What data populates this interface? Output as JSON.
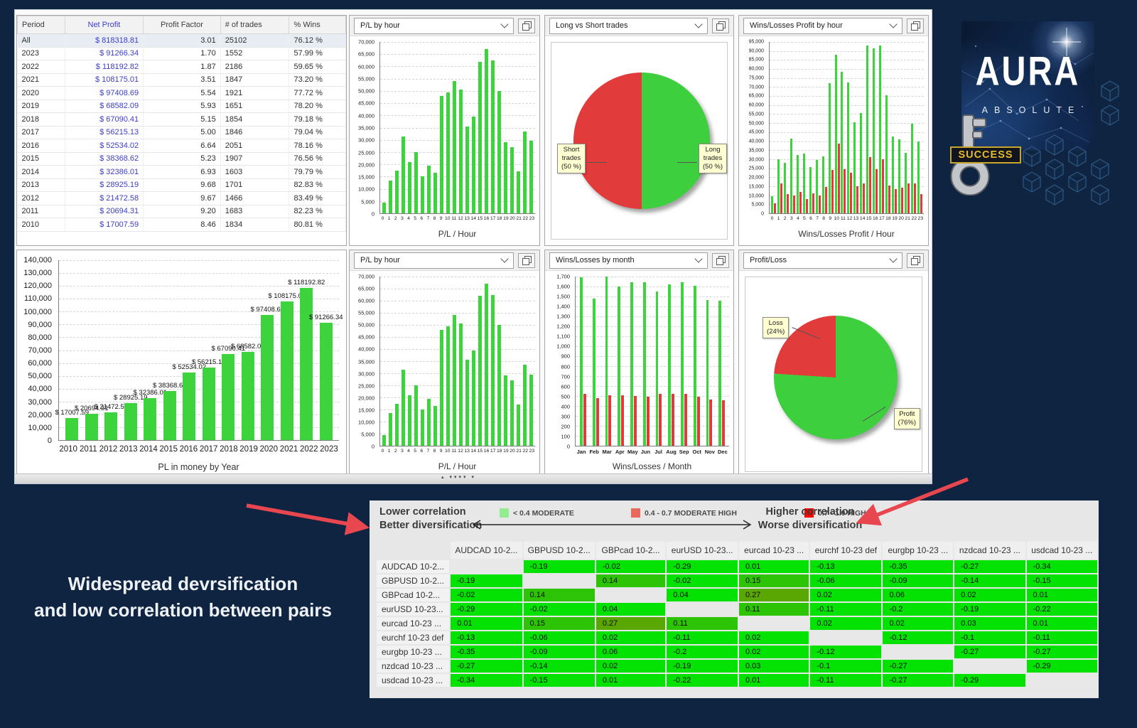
{
  "caption": {
    "line1": "Widespread devrsification",
    "line2": "and low correlation between pairs"
  },
  "icons": {
    "splitter": "▴ ▾▾▾▾ ▾"
  },
  "logo": {
    "title": "AURA",
    "subtitle": "ABSOLUTE",
    "badge": "SUCCESS"
  },
  "summary_table": {
    "columns": [
      "Period",
      "Net Profit",
      "Profit Factor",
      "# of trades",
      "% Wins"
    ],
    "rows": [
      [
        "All",
        "$ 818318.81",
        "3.01",
        "25102",
        "76.12 %"
      ],
      [
        "2023",
        "$ 91266.34",
        "1.70",
        "1552",
        "57.99 %"
      ],
      [
        "2022",
        "$ 118192.82",
        "1.87",
        "2186",
        "59.65 %"
      ],
      [
        "2021",
        "$ 108175.01",
        "3.51",
        "1847",
        "73.20 %"
      ],
      [
        "2020",
        "$ 97408.69",
        "5.54",
        "1921",
        "77.72 %"
      ],
      [
        "2019",
        "$ 68582.09",
        "5.93",
        "1651",
        "78.20 %"
      ],
      [
        "2018",
        "$ 67090.41",
        "5.15",
        "1854",
        "79.18 %"
      ],
      [
        "2017",
        "$ 56215.13",
        "5.00",
        "1846",
        "79.04 %"
      ],
      [
        "2016",
        "$ 52534.02",
        "6.64",
        "2051",
        "78.16 %"
      ],
      [
        "2015",
        "$ 38368.62",
        "5.23",
        "1907",
        "76.56 %"
      ],
      [
        "2014",
        "$ 32386.01",
        "6.93",
        "1603",
        "79.79 %"
      ],
      [
        "2013",
        "$ 28925.19",
        "9.68",
        "1701",
        "82.83 %"
      ],
      [
        "2012",
        "$ 21472.58",
        "9.67",
        "1466",
        "83.49 %"
      ],
      [
        "2011",
        "$ 20694.31",
        "9.20",
        "1683",
        "82.23 %"
      ],
      [
        "2010",
        "$ 17007.59",
        "8.46",
        "1834",
        "80.81 %"
      ]
    ]
  },
  "chart_data": [
    {
      "id": "pl_by_hour_top",
      "type": "bar",
      "dropdown": "P/L by hour",
      "xlabel": "P/L / Hour",
      "ylim": [
        0,
        70000
      ],
      "ystep": 5000,
      "categories": [
        "0",
        "1",
        "2",
        "3",
        "4",
        "5",
        "6",
        "7",
        "8",
        "9",
        "10",
        "11",
        "12",
        "13",
        "14",
        "15",
        "16",
        "17",
        "18",
        "19",
        "20",
        "21",
        "22",
        "23"
      ],
      "series": [
        {
          "name": "P/L",
          "color": "#3dd33d",
          "values": [
            4500,
            13500,
            17500,
            31500,
            21000,
            25000,
            15000,
            19500,
            16500,
            48000,
            49500,
            54000,
            50500,
            35500,
            39500,
            62000,
            67000,
            62500,
            50000,
            29000,
            27000,
            17000,
            33500,
            29500
          ]
        }
      ]
    },
    {
      "id": "long_vs_short",
      "type": "pie",
      "dropdown": "Long vs Short trades",
      "slices": [
        {
          "label": "Long trades",
          "pct": 50,
          "color": "#3ecf3e"
        },
        {
          "label": "Short trades",
          "pct": 50,
          "color": "#e23b3b"
        }
      ],
      "callouts": [
        {
          "text": "Short\ntrades\n(50 %)"
        },
        {
          "text": "Long\ntrades\n(50 %)"
        }
      ]
    },
    {
      "id": "wl_profit_by_hour",
      "type": "bar",
      "dropdown": "Wins/Losses Profit by hour",
      "xlabel": "Wins/Losses Profit / Hour",
      "ylim": [
        0,
        95000
      ],
      "ystep": 5000,
      "categories": [
        "0",
        "1",
        "2",
        "3",
        "4",
        "5",
        "6",
        "7",
        "8",
        "9",
        "10",
        "11",
        "12",
        "13",
        "14",
        "15",
        "16",
        "17",
        "18",
        "19",
        "20",
        "21",
        "22",
        "23"
      ],
      "series": [
        {
          "name": "Wins",
          "color": "#3dd33d",
          "values": [
            9500,
            30000,
            28000,
            41500,
            32500,
            33000,
            25500,
            29500,
            31500,
            72000,
            88000,
            78500,
            72500,
            50500,
            55500,
            93000,
            91500,
            93000,
            65500,
            42500,
            41000,
            33500,
            49500,
            40000
          ]
        },
        {
          "name": "Losses",
          "color": "#e03a3a",
          "values": [
            5500,
            16500,
            10500,
            10000,
            12000,
            8000,
            11000,
            10000,
            14500,
            24000,
            38500,
            24500,
            22500,
            15000,
            16500,
            31000,
            24500,
            30000,
            15500,
            13500,
            14000,
            16500,
            16500,
            10500
          ]
        }
      ]
    },
    {
      "id": "pl_by_year",
      "type": "bar",
      "xlabel": "PL in money by Year",
      "ylim": [
        0,
        140000
      ],
      "ystep": 10000,
      "categories": [
        "2010",
        "2011",
        "2012",
        "2013",
        "2014",
        "2015",
        "2016",
        "2017",
        "2018",
        "2019",
        "2020",
        "2021",
        "2022",
        "2023"
      ],
      "bar_labels": [
        "$ 17007.59",
        "$ 20694.31",
        "$ 21472.58",
        "$ 28925.19",
        "$ 32386.01",
        "$ 38368.62",
        "$ 52534.02",
        "$ 56215.13",
        "$ 67090.41",
        "$ 68582.09",
        "$ 97408.69",
        "$ 108175.01",
        "$ 118192.82",
        "$ 91266.34"
      ],
      "series": [
        {
          "name": "P/L",
          "color": "#3dd33d",
          "values": [
            17007.59,
            20694.31,
            21472.58,
            28925.19,
            32386.01,
            38368.62,
            52534.02,
            56215.13,
            67090.41,
            68582.09,
            97408.69,
            108175.01,
            118192.82,
            91266.34
          ]
        }
      ]
    },
    {
      "id": "pl_by_hour_bottom",
      "type": "bar",
      "dropdown": "P/L by hour",
      "xlabel": "P/L / Hour",
      "ylim": [
        0,
        70000
      ],
      "ystep": 5000,
      "categories": [
        "0",
        "1",
        "2",
        "3",
        "4",
        "5",
        "6",
        "7",
        "8",
        "9",
        "10",
        "11",
        "12",
        "13",
        "14",
        "15",
        "16",
        "17",
        "18",
        "19",
        "20",
        "21",
        "22",
        "23"
      ],
      "series": [
        {
          "name": "P/L",
          "color": "#3dd33d",
          "values": [
            4500,
            13500,
            17500,
            31500,
            21000,
            25000,
            15000,
            19500,
            16500,
            48000,
            49500,
            54000,
            50500,
            35500,
            39500,
            62000,
            67000,
            62500,
            50000,
            29000,
            27000,
            17000,
            33500,
            29500
          ]
        }
      ]
    },
    {
      "id": "wl_by_month",
      "type": "bar",
      "dropdown": "Wins/Losses by month",
      "xlabel": "Wins/Losses / Month",
      "ylim": [
        0,
        1700
      ],
      "ystep": 100,
      "categories": [
        "Jan",
        "Feb",
        "Mar",
        "Apr",
        "May",
        "Jun",
        "Jul",
        "Aug",
        "Sep",
        "Oct",
        "Nov",
        "Dec"
      ],
      "series": [
        {
          "name": "Wins",
          "color": "#3dd33d",
          "values": [
            1690,
            1480,
            1700,
            1600,
            1640,
            1640,
            1550,
            1625,
            1640,
            1610,
            1465,
            1460
          ]
        },
        {
          "name": "Losses",
          "color": "#e03a3a",
          "values": [
            525,
            480,
            510,
            505,
            500,
            495,
            525,
            520,
            520,
            495,
            465,
            455
          ]
        }
      ]
    },
    {
      "id": "profit_loss",
      "type": "pie",
      "dropdown": "Profit/Loss",
      "slices": [
        {
          "label": "Profit",
          "pct": 76,
          "color": "#3ecf3e"
        },
        {
          "label": "Loss",
          "pct": 24,
          "color": "#e23b3b"
        }
      ],
      "callouts": [
        {
          "text": "Loss\n(24%)"
        },
        {
          "text": "Profit\n(76%)"
        }
      ]
    }
  ],
  "correlation": {
    "lower_title_1": "Lower correlation",
    "lower_title_2": "Better diversification",
    "higher_title_1": "Higher correlation",
    "higher_title_2": "Worse diversification",
    "legend": [
      {
        "color": "#90EE90",
        "label": "< 0.4 MODERATE"
      },
      {
        "color": "#E8695B",
        "label": "0.4 - 0.7 MODERATE HIGH"
      },
      {
        "color": "#FF0000",
        "label": "0.7 - 1.0 HIGH"
      }
    ],
    "cell_colors": {
      "bright": "#04e204",
      "mid": "#2dc306",
      "dark": "#5aa703",
      "blank": "#e8e8e8"
    },
    "pairs": [
      "AUDCAD 10-2...",
      "GBPUSD 10-2...",
      "GBPcad 10-2...",
      "eurUSD 10-23...",
      "eurcad 10-23 ...",
      "eurchf 10-23 def",
      "eurgbp 10-23 ...",
      "nzdcad 10-23 ...",
      "usdcad 10-23 ..."
    ],
    "matrix": [
      [
        "",
        "-0.19",
        "-0.02",
        "-0.29",
        "0.01",
        "-0.13",
        "-0.35",
        "-0.27",
        "-0.34"
      ],
      [
        "-0.19",
        "",
        "0.14",
        "-0.02",
        "0.15",
        "-0.06",
        "-0.09",
        "-0.14",
        "-0.15"
      ],
      [
        "-0.02",
        "0.14",
        "",
        "0.04",
        "0.27",
        "0.02",
        "0.06",
        "0.02",
        "0.01"
      ],
      [
        "-0.29",
        "-0.02",
        "0.04",
        "",
        "0.11",
        "-0.11",
        "-0.2",
        "-0.19",
        "-0.22"
      ],
      [
        "0.01",
        "0.15",
        "0.27",
        "0.11",
        "",
        "0.02",
        "0.02",
        "0.03",
        "0.01"
      ],
      [
        "-0.13",
        "-0.06",
        "0.02",
        "-0.11",
        "0.02",
        "",
        "-0.12",
        "-0.1",
        "-0.11"
      ],
      [
        "-0.35",
        "-0.09",
        "0.06",
        "-0.2",
        "0.02",
        "-0.12",
        "",
        "-0.27",
        "-0.27"
      ],
      [
        "-0.27",
        "-0.14",
        "0.02",
        "-0.19",
        "0.03",
        "-0.1",
        "-0.27",
        "",
        "-0.29"
      ],
      [
        "-0.34",
        "-0.15",
        "0.01",
        "-0.22",
        "0.01",
        "-0.11",
        "-0.27",
        "-0.29",
        ""
      ]
    ]
  }
}
